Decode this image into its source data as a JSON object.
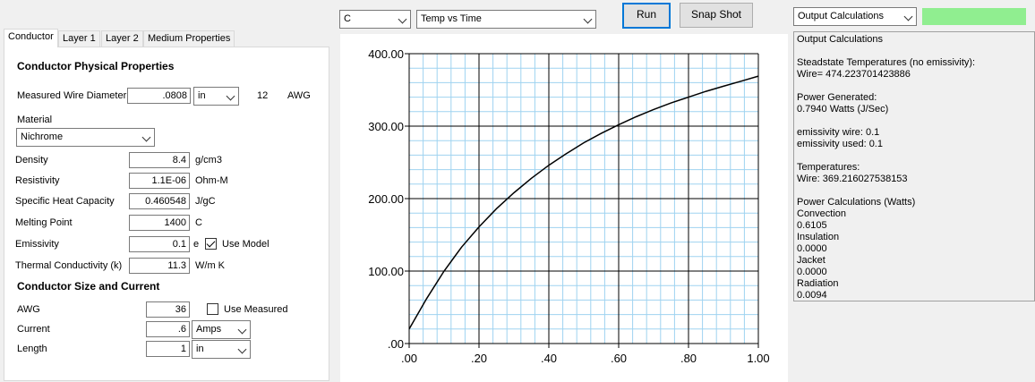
{
  "tabs": [
    {
      "label": "Conductor",
      "active": true
    },
    {
      "label": "Layer 1",
      "active": false
    },
    {
      "label": "Layer 2",
      "active": false
    },
    {
      "label": "Medium Properties",
      "active": false
    }
  ],
  "conductor": {
    "section_physical": "Conductor Physical Properties",
    "measured_wire_diameter": {
      "label": "Measured Wire Diameter",
      "value": ".0808",
      "unit": "in",
      "awg_value": "12",
      "awg_label": "AWG"
    },
    "material": {
      "label": "Material",
      "value": "Nichrome"
    },
    "density": {
      "label": "Density",
      "value": "8.4",
      "unit": "g/cm3"
    },
    "resistivity": {
      "label": "Resistivity",
      "value": "1.1E-06",
      "unit": "Ohm-M"
    },
    "specific_heat": {
      "label": "Specific Heat Capacity",
      "value": "0.460548",
      "unit": "J/gC"
    },
    "melting_point": {
      "label": "Melting Point",
      "value": "1400",
      "unit": "C"
    },
    "emissivity": {
      "label": "Emissivity",
      "value": "0.1",
      "unit": "e",
      "use_model_label": "Use Model",
      "use_model_checked": true
    },
    "thermal_conductivity": {
      "label": "Thermal Conductivity (k)",
      "value": "11.3",
      "unit": "W/m K"
    },
    "section_size": "Conductor Size and Current",
    "awg": {
      "label": "AWG",
      "value": "36",
      "use_measured_label": "Use Measured",
      "use_measured_checked": false
    },
    "current": {
      "label": "Current",
      "value": ".6",
      "unit": "Amps"
    },
    "length": {
      "label": "Length",
      "value": "1",
      "unit": "in"
    }
  },
  "toolbar": {
    "unit_select": "C",
    "plot_select": "Temp vs Time",
    "run_label": "Run",
    "snapshot_label": "Snap Shot",
    "output_select": "Output Calculations",
    "status_color": "#90ee90"
  },
  "output": {
    "lines": [
      "Output Calculations",
      "",
      "Steadstate Temperatures (no emissivity):",
      "Wire= 474.223701423886",
      "",
      "Power Generated:",
      "0.7940 Watts (J/Sec)",
      "",
      "emissivity wire: 0.1",
      "emissivity used: 0.1",
      "",
      "Temperatures:",
      "Wire: 369.216027538153",
      "",
      "Power Calculations (Watts)",
      "Convection",
      "0.6105",
      "Insulation",
      "0.0000",
      "Jacket",
      "0.0000",
      "Radiation",
      "0.0094"
    ]
  },
  "chart_data": {
    "type": "line",
    "title": "",
    "xlabel": "",
    "ylabel": "",
    "xlim": [
      0,
      1
    ],
    "ylim": [
      0,
      400
    ],
    "xticks": [
      ".00",
      ".20",
      ".40",
      ".60",
      ".80",
      "1.00"
    ],
    "yticks": [
      ".00",
      "100.00",
      "200.00",
      "300.00",
      "400.00"
    ],
    "grid": true,
    "series": [
      {
        "x": [
          0,
          0.05,
          0.1,
          0.15,
          0.2,
          0.25,
          0.3,
          0.35,
          0.4,
          0.45,
          0.5,
          0.55,
          0.6,
          0.65,
          0.7,
          0.75,
          0.8,
          0.85,
          0.9,
          0.95,
          1.0
        ],
        "y": [
          20,
          62,
          100,
          133,
          161,
          186,
          208,
          228,
          246,
          262,
          277,
          290,
          302,
          313,
          323,
          332,
          340,
          348,
          355,
          362,
          369
        ],
        "color": "#000000"
      }
    ]
  }
}
